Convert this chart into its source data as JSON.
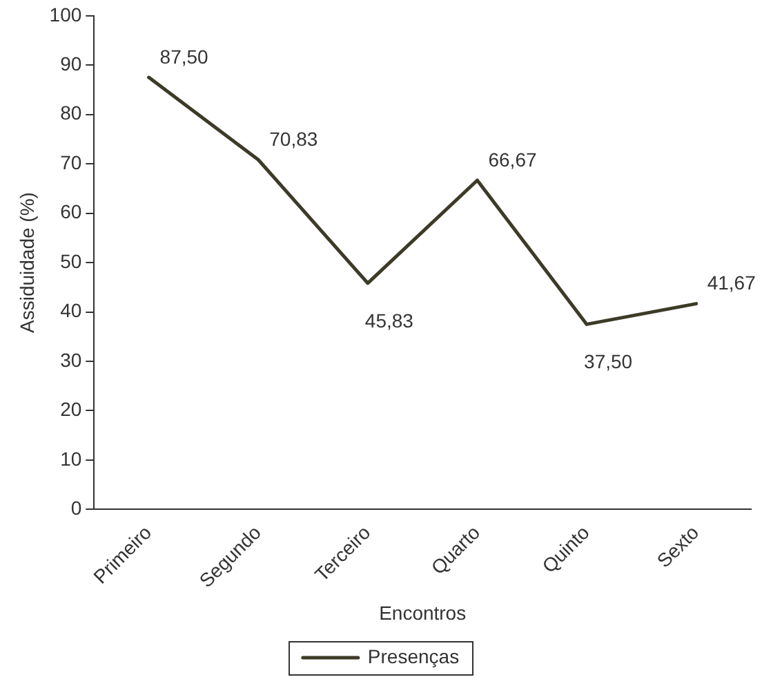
{
  "chart_data": {
    "type": "line",
    "xlabel": "Encontros",
    "ylabel": "Assiduidade (%)",
    "categories": [
      "Primeiro",
      "Segundo",
      "Terceiro",
      "Quarto",
      "Quinto",
      "Sexto"
    ],
    "series": [
      {
        "name": "Presenças",
        "color": "#3d3b27",
        "values": [
          87.5,
          70.83,
          45.83,
          66.67,
          37.5,
          41.67
        ],
        "value_labels": [
          "87,50",
          "70,83",
          "45,83",
          "66,67",
          "37,50",
          "41,67"
        ]
      }
    ],
    "ylim": [
      0,
      100
    ],
    "yticks": [
      0,
      10,
      20,
      30,
      40,
      50,
      60,
      70,
      80,
      90,
      100
    ],
    "grid": false,
    "legend": "bottom",
    "marker": "none",
    "line_style": "solid"
  }
}
